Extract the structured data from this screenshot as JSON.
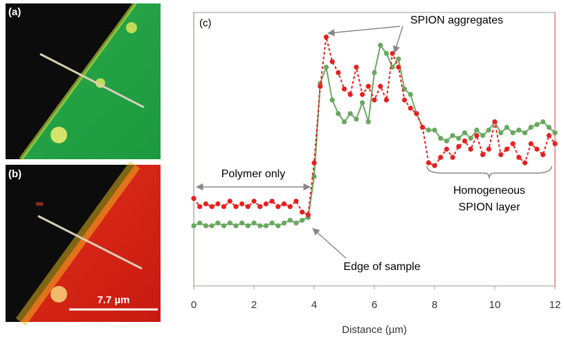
{
  "panels": [
    "(a)",
    "(b)",
    "(c)"
  ],
  "scale_bar": "7.7 µm",
  "chart_data": {
    "type": "line",
    "x_label": "Distance (µm)",
    "annotations": [
      "SPION aggregates",
      "Polymer only",
      "Edge of sample",
      "Homogeneous",
      "SPION layer"
    ],
    "xlim": [
      0,
      12
    ],
    "xticks": [
      0,
      2,
      4,
      6,
      8,
      10,
      12
    ],
    "ylim": [
      0,
      100
    ],
    "x": [
      0,
      0.2,
      0.4,
      0.6,
      0.8,
      1,
      1.2,
      1.4,
      1.6,
      1.8,
      2,
      2.2,
      2.4,
      2.6,
      2.8,
      3,
      3.2,
      3.4,
      3.6,
      3.8,
      4,
      4.2,
      4.4,
      4.6,
      4.8,
      5,
      5.2,
      5.4,
      5.6,
      5.8,
      6,
      6.2,
      6.4,
      6.6,
      6.8,
      7,
      7.2,
      7.4,
      7.6,
      7.8,
      8,
      8.2,
      8.4,
      8.6,
      8.8,
      9,
      9.2,
      9.4,
      9.6,
      9.8,
      10,
      10.2,
      10.4,
      10.6,
      10.8,
      11,
      11.2,
      11.4,
      11.6,
      11.8,
      12
    ],
    "series": [
      {
        "color": "#6aa860",
        "dashed": false,
        "values": [
          22,
          23,
          22,
          22,
          23,
          22,
          23,
          22,
          23,
          22,
          23,
          22,
          22,
          23,
          22,
          23,
          24,
          23,
          24,
          25,
          40,
          74,
          80,
          68,
          63,
          60,
          63,
          61,
          67,
          60,
          78,
          88,
          85,
          80,
          83,
          72,
          70,
          63,
          58,
          57,
          57,
          54,
          53,
          55,
          54,
          56,
          54,
          57,
          55,
          57,
          60,
          56,
          58,
          56,
          57,
          56,
          58,
          59,
          60,
          58,
          56
        ]
      },
      {
        "color": "#e82020",
        "dashed": true,
        "values": [
          32,
          29,
          30,
          29,
          30,
          29,
          31,
          29,
          30,
          29,
          31,
          29,
          30,
          31,
          29,
          30,
          29,
          31,
          27,
          26,
          45,
          73,
          91,
          82,
          78,
          72,
          70,
          80,
          70,
          73,
          68,
          73,
          68,
          85,
          80,
          68,
          65,
          63,
          58,
          45,
          44,
          47,
          50,
          47,
          51,
          53,
          50,
          55,
          48,
          50,
          60,
          48,
          50,
          52,
          47,
          45,
          52,
          50,
          48,
          55,
          52
        ]
      }
    ]
  }
}
